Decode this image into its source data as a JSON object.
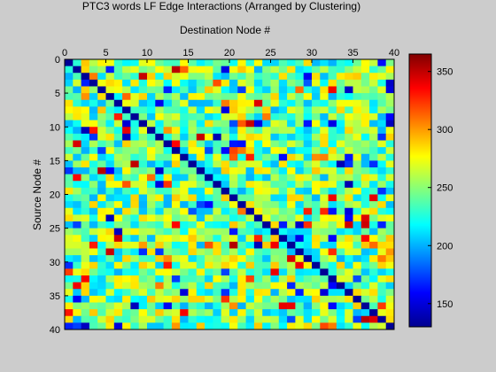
{
  "chart_data": {
    "type": "heatmap",
    "title": "PTC3 words LF Edge Interactions (Arranged by Clustering)",
    "xlabel": "Destination Node #",
    "ylabel": "Source Node #",
    "x_range": [
      0,
      40
    ],
    "y_range": [
      0,
      40
    ],
    "x_ticks": [
      "0",
      "5",
      "10",
      "15",
      "20",
      "25",
      "30",
      "35",
      "40"
    ],
    "y_ticks": [
      "0",
      "5",
      "10",
      "15",
      "20",
      "25",
      "30",
      "35",
      "40"
    ],
    "colorbar": {
      "range": [
        130,
        365
      ],
      "ticks": [
        "150",
        "200",
        "250",
        "300",
        "350"
      ],
      "colormap": "jet"
    },
    "grid": false,
    "diagonal_value": 135,
    "matrix_size": 40,
    "off_diagonal_typical_range": [
      200,
      290
    ],
    "note_values": "cell values estimated from colors; diagonal cells are minimum (~135), most off-diagonal cells cyan-to-yellow (~200-290) with scattered high outliers up to ~350"
  }
}
